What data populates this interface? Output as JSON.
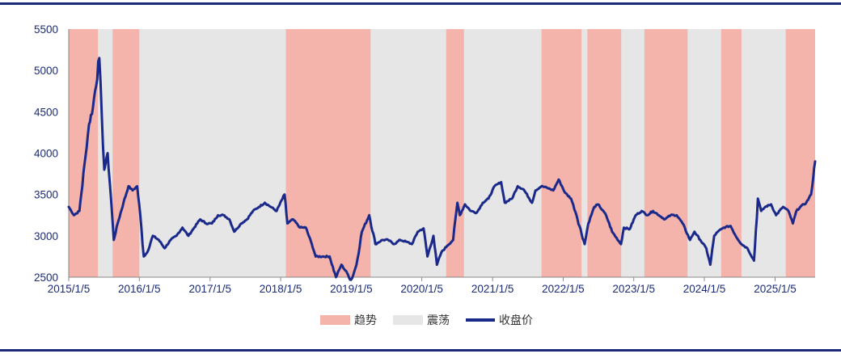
{
  "header": {
    "title": ""
  },
  "chart_data": {
    "type": "line",
    "title": "",
    "xlabel": "",
    "ylabel": "",
    "ylim": [
      2500,
      5500
    ],
    "yticks": [
      2500,
      3000,
      3500,
      4000,
      4500,
      5000,
      5500
    ],
    "xticks": [
      "2015/1/5",
      "2016/1/5",
      "2017/1/5",
      "2018/1/5",
      "2019/1/5",
      "2020/1/5",
      "2021/1/5",
      "2022/1/5",
      "2023/1/5",
      "2024/1/5",
      "2025/1/5"
    ],
    "xlim": [
      "2015-01-05",
      "2025-07-31"
    ],
    "grid": false,
    "legend": {
      "position": "bottom",
      "items": [
        {
          "label": "趋势",
          "color": "#f4b3ab",
          "kind": "area"
        },
        {
          "label": "震荡",
          "color": "#e6e6e6",
          "kind": "area"
        },
        {
          "label": "收盘价",
          "color": "#1b2a8a",
          "kind": "line"
        }
      ]
    },
    "regimes": {
      "trend": [
        [
          "2015-01-05",
          "2015-06-05"
        ],
        [
          "2015-08-20",
          "2016-01-05"
        ],
        [
          "2018-02-01",
          "2019-04-15"
        ],
        [
          "2020-05-10",
          "2020-08-10"
        ],
        [
          "2021-09-15",
          "2022-04-10"
        ],
        [
          "2022-05-10",
          "2022-11-01"
        ],
        [
          "2023-03-01",
          "2023-10-10"
        ],
        [
          "2024-04-01",
          "2024-07-15"
        ],
        [
          "2025-03-01",
          "2025-07-31"
        ]
      ]
    },
    "series": [
      {
        "name": "收盘价",
        "x": [
          "2015-01-05",
          "2015-02-01",
          "2015-03-01",
          "2015-04-01",
          "2015-04-20",
          "2015-05-10",
          "2015-06-12",
          "2015-06-25",
          "2015-07-08",
          "2015-07-25",
          "2015-08-10",
          "2015-08-26",
          "2015-09-15",
          "2015-10-15",
          "2015-11-10",
          "2015-12-01",
          "2015-12-25",
          "2016-01-10",
          "2016-01-28",
          "2016-02-15",
          "2016-03-15",
          "2016-04-15",
          "2016-05-15",
          "2016-06-15",
          "2016-07-15",
          "2016-08-15",
          "2016-09-15",
          "2016-10-15",
          "2016-11-15",
          "2016-12-15",
          "2017-01-15",
          "2017-02-15",
          "2017-03-15",
          "2017-04-15",
          "2017-05-10",
          "2017-06-15",
          "2017-07-15",
          "2017-08-15",
          "2017-09-15",
          "2017-10-15",
          "2017-11-15",
          "2017-12-15",
          "2018-01-25",
          "2018-02-09",
          "2018-03-10",
          "2018-04-15",
          "2018-05-15",
          "2018-06-15",
          "2018-07-05",
          "2018-08-15",
          "2018-09-15",
          "2018-10-18",
          "2018-11-15",
          "2018-12-15",
          "2019-01-04",
          "2019-02-01",
          "2019-03-01",
          "2019-04-08",
          "2019-05-10",
          "2019-06-15",
          "2019-07-15",
          "2019-08-15",
          "2019-09-15",
          "2019-10-15",
          "2019-11-15",
          "2019-12-15",
          "2020-01-14",
          "2020-02-03",
          "2020-03-05",
          "2020-03-23",
          "2020-04-15",
          "2020-05-15",
          "2020-06-15",
          "2020-07-07",
          "2020-07-20",
          "2020-08-15",
          "2020-09-15",
          "2020-10-15",
          "2020-11-15",
          "2020-12-15",
          "2021-01-15",
          "2021-02-18",
          "2021-03-09",
          "2021-04-15",
          "2021-05-15",
          "2021-06-15",
          "2021-07-28",
          "2021-08-15",
          "2021-09-15",
          "2021-10-15",
          "2021-11-15",
          "2021-12-13",
          "2022-01-15",
          "2022-02-15",
          "2022-03-15",
          "2022-04-26",
          "2022-05-15",
          "2022-06-15",
          "2022-07-05",
          "2022-08-15",
          "2022-09-15",
          "2022-10-31",
          "2022-11-15",
          "2022-12-15",
          "2023-01-15",
          "2023-02-15",
          "2023-03-15",
          "2023-04-15",
          "2023-05-15",
          "2023-06-15",
          "2023-07-15",
          "2023-08-15",
          "2023-09-15",
          "2023-10-23",
          "2023-11-15",
          "2023-12-15",
          "2024-01-15",
          "2024-02-05",
          "2024-02-25",
          "2024-03-15",
          "2024-04-15",
          "2024-05-20",
          "2024-06-15",
          "2024-07-15",
          "2024-08-15",
          "2024-09-18",
          "2024-10-08",
          "2024-10-25",
          "2024-11-15",
          "2024-12-15",
          "2025-01-10",
          "2025-02-15",
          "2025-03-15",
          "2025-04-07",
          "2025-04-25",
          "2025-05-15",
          "2025-06-15",
          "2025-07-10",
          "2025-07-31"
        ],
        "values": [
          3350,
          3250,
          3300,
          3950,
          4350,
          4550,
          5150,
          4450,
          3800,
          4000,
          3500,
          2950,
          3150,
          3400,
          3600,
          3550,
          3600,
          3250,
          2750,
          2800,
          3000,
          2950,
          2850,
          2950,
          3000,
          3100,
          3000,
          3100,
          3200,
          3150,
          3150,
          3250,
          3250,
          3200,
          3050,
          3150,
          3200,
          3300,
          3350,
          3400,
          3350,
          3300,
          3500,
          3150,
          3200,
          3100,
          3100,
          2900,
          2750,
          2750,
          2750,
          2500,
          2650,
          2550,
          2450,
          2650,
          3050,
          3250,
          2900,
          2950,
          2950,
          2900,
          2950,
          2930,
          2900,
          3050,
          3090,
          2750,
          3000,
          2650,
          2800,
          2880,
          2950,
          3400,
          3250,
          3380,
          3300,
          3280,
          3400,
          3450,
          3600,
          3650,
          3400,
          3450,
          3600,
          3560,
          3400,
          3550,
          3600,
          3580,
          3550,
          3680,
          3520,
          3450,
          3250,
          2900,
          3150,
          3350,
          3380,
          3250,
          3050,
          2900,
          3100,
          3080,
          3250,
          3300,
          3250,
          3300,
          3250,
          3200,
          3250,
          3250,
          3150,
          2950,
          3050,
          2950,
          2850,
          2650,
          3000,
          3050,
          3100,
          3120,
          3000,
          2900,
          2850,
          2700,
          3450,
          3300,
          3350,
          3380,
          3250,
          3350,
          3300,
          3150,
          3300,
          3350,
          3400,
          3500,
          3900
        ]
      }
    ]
  }
}
